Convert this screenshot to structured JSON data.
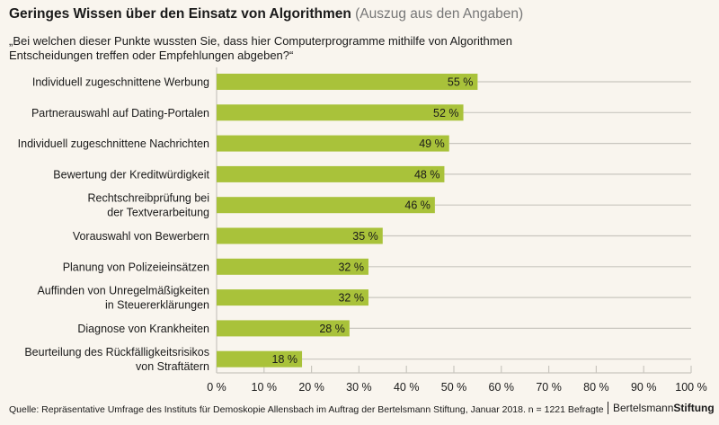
{
  "chart_data": {
    "type": "bar",
    "orientation": "horizontal",
    "title": "Geringes Wissen über den Einsatz von Algorithmen",
    "title_suffix": "(Auszug aus den Angaben)",
    "subtitle": "„Bei welchen dieser Punkte wussten Sie, dass hier Computerprogramme mithilfe von Algorithmen Entscheidungen treffen oder Empfehlungen abgeben?“",
    "categories": [
      "Individuell zugeschnittene Werbung",
      "Partnerauswahl auf Dating-Portalen",
      "Individuell zugeschnittene Nachrichten",
      "Bewertung der Kreditwürdigkeit",
      "Rechtschreibprüfung bei|der Textverarbeitung",
      "Vorauswahl von Bewerbern",
      "Planung von Polizeieinsätzen",
      "Auffinden von Unregelmäßigkeiten|in Steuererklärungen",
      "Diagnose von Krankheiten",
      "Beurteilung des Rückfälligkeitsrisikos|von Straftätern"
    ],
    "values": [
      55,
      52,
      49,
      48,
      46,
      35,
      32,
      32,
      28,
      18
    ],
    "data_labels": [
      "55 %",
      "52 %",
      "49 %",
      "48 %",
      "46 %",
      "35 %",
      "32 %",
      "32 %",
      "28 %",
      "18 %"
    ],
    "xlim": [
      0,
      100
    ],
    "xticks": [
      "0 %",
      "10 %",
      "20 %",
      "30 %",
      "40 %",
      "50 %",
      "60 %",
      "70 %",
      "80 %",
      "90 %",
      "100 %"
    ],
    "xlabel": "",
    "ylabel": "",
    "grid": false,
    "colors": {
      "bar": "#a9c23a",
      "background": "#f9f5ee",
      "guide": "#c9c6bf"
    }
  },
  "footer": {
    "source": "Quelle: Repräsentative Umfrage des Instituts für Demoskopie Allensbach im Auftrag der Bertelsmann Stiftung, Januar 2018. n = 1221 Befragte",
    "logo": "BertelsmannStiftung",
    "logo_part1": "Bertelsmann",
    "logo_part2": "Stiftung"
  }
}
